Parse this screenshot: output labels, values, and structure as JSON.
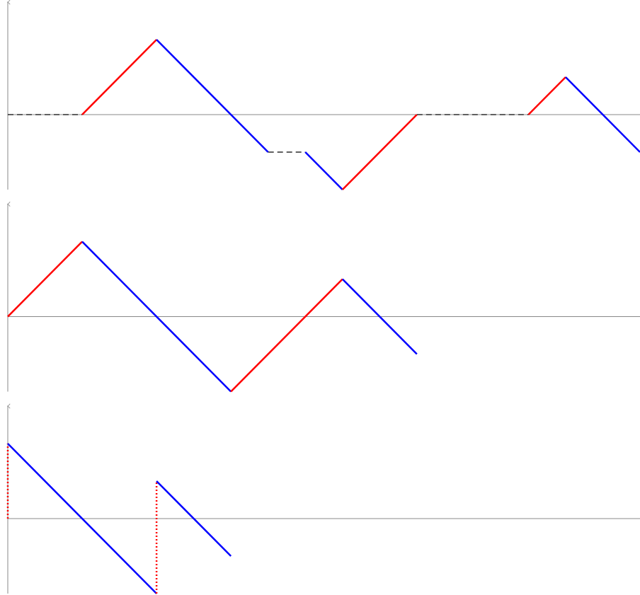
{
  "chart_data": [
    {
      "type": "line",
      "xlim": [
        0,
        17
      ],
      "ylim": [
        -2,
        3
      ],
      "segments": [
        {
          "style": "dashed",
          "color": "#000000",
          "x": [
            0,
            2
          ],
          "y": [
            0,
            0
          ]
        },
        {
          "style": "solid",
          "color": "#ff0000",
          "x": [
            2,
            4
          ],
          "y": [
            0,
            2
          ]
        },
        {
          "style": "solid",
          "color": "#0000ff",
          "x": [
            4,
            7
          ],
          "y": [
            2,
            -1
          ]
        },
        {
          "style": "dashed",
          "color": "#000000",
          "x": [
            7,
            8
          ],
          "y": [
            -1,
            -1
          ]
        },
        {
          "style": "solid",
          "color": "#0000ff",
          "x": [
            8,
            9
          ],
          "y": [
            -1,
            -2
          ]
        },
        {
          "style": "solid",
          "color": "#ff0000",
          "x": [
            9,
            11
          ],
          "y": [
            -2,
            0
          ]
        },
        {
          "style": "dashed",
          "color": "#000000",
          "x": [
            11,
            14
          ],
          "y": [
            0,
            0
          ]
        },
        {
          "style": "solid",
          "color": "#ff0000",
          "x": [
            14,
            15
          ],
          "y": [
            0,
            1
          ]
        },
        {
          "style": "solid",
          "color": "#0000ff",
          "x": [
            15,
            17
          ],
          "y": [
            1,
            -1
          ]
        }
      ]
    },
    {
      "type": "line",
      "xlim": [
        0,
        17
      ],
      "ylim": [
        -2,
        3
      ],
      "segments": [
        {
          "style": "solid",
          "color": "#ff0000",
          "x": [
            0,
            2
          ],
          "y": [
            0,
            2
          ]
        },
        {
          "style": "solid",
          "color": "#0000ff",
          "x": [
            2,
            6
          ],
          "y": [
            2,
            -2
          ]
        },
        {
          "style": "solid",
          "color": "#ff0000",
          "x": [
            6,
            9
          ],
          "y": [
            -2,
            1
          ]
        },
        {
          "style": "solid",
          "color": "#0000ff",
          "x": [
            9,
            11
          ],
          "y": [
            1,
            -1
          ]
        }
      ]
    },
    {
      "type": "line",
      "xlim": [
        0,
        17
      ],
      "ylim": [
        -2,
        3
      ],
      "segments": [
        {
          "style": "dotted",
          "color": "#ff0000",
          "x": [
            0,
            0
          ],
          "y": [
            0,
            2
          ]
        },
        {
          "style": "solid",
          "color": "#0000ff",
          "x": [
            0,
            4
          ],
          "y": [
            2,
            -2
          ]
        },
        {
          "style": "dotted",
          "color": "#ff0000",
          "x": [
            4,
            4
          ],
          "y": [
            -2,
            1
          ]
        },
        {
          "style": "solid",
          "color": "#0000ff",
          "x": [
            4,
            6
          ],
          "y": [
            1,
            -1
          ]
        }
      ]
    }
  ]
}
